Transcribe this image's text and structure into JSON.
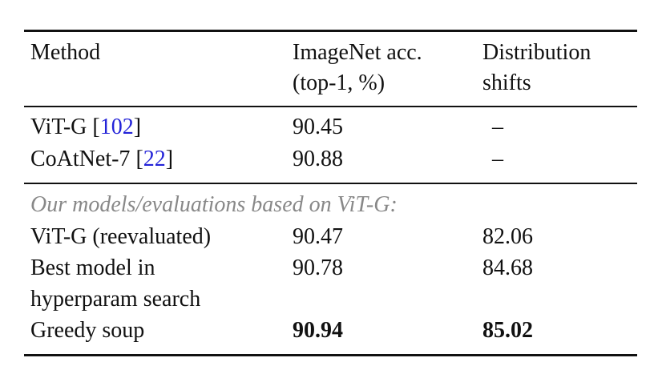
{
  "table": {
    "header": [
      [
        "Method"
      ],
      [
        "ImageNet acc.",
        "(top-1, %)"
      ],
      [
        "Distribution",
        "shifts"
      ]
    ],
    "rows_prior": [
      {
        "method": "ViT-G",
        "cite": {
          "open": "[",
          "number": "102",
          "close": "]"
        },
        "acc": 90.45,
        "shift": "–"
      },
      {
        "method": "CoAtNet-7",
        "cite": {
          "open": "[",
          "number": "22",
          "close": "]"
        },
        "acc": 90.88,
        "shift": "–"
      }
    ],
    "section": "Our models/evaluations based on ViT-G:",
    "rows_ours": [
      {
        "method": [
          "ViT-G (reevaluated)"
        ],
        "acc": 90.47,
        "shift": 82.06
      },
      {
        "method": [
          "Best model in",
          "hyperparam search"
        ],
        "acc": 90.78,
        "shift": 84.68
      },
      {
        "method": [
          "Greedy soup"
        ],
        "acc": 90.94,
        "shift": 85.02,
        "bold": true
      }
    ]
  }
}
